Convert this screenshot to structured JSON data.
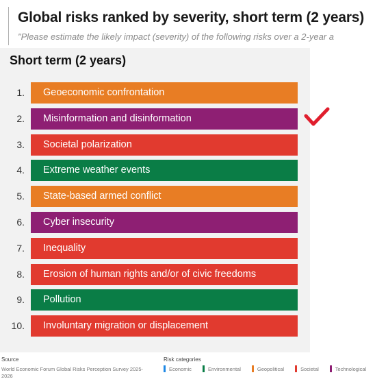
{
  "header": {
    "title": "Global risks ranked by severity, short term (2 years)",
    "subtitle": "\"Please estimate the likely impact (severity) of the following risks over a 2-year a"
  },
  "chart_data": {
    "type": "table",
    "title": "Short term (2 years)",
    "rows": [
      {
        "rank": "1.",
        "label": "Geoeconomic confrontation",
        "category": "Geopolitical"
      },
      {
        "rank": "2.",
        "label": "Misinformation and disinformation",
        "category": "Technological"
      },
      {
        "rank": "3.",
        "label": "Societal polarization",
        "category": "Societal"
      },
      {
        "rank": "4.",
        "label": "Extreme weather events",
        "category": "Environmental"
      },
      {
        "rank": "5.",
        "label": "State-based armed conflict",
        "category": "Geopolitical"
      },
      {
        "rank": "6.",
        "label": "Cyber insecurity",
        "category": "Technological"
      },
      {
        "rank": "7.",
        "label": "Inequality",
        "category": "Societal"
      },
      {
        "rank": "8.",
        "label": "Erosion of human rights and/or of civic freedoms",
        "category": "Societal"
      },
      {
        "rank": "9.",
        "label": "Pollution",
        "category": "Environmental"
      },
      {
        "rank": "10.",
        "label": "Involuntary migration or displacement",
        "category": "Societal"
      }
    ],
    "category_colors": {
      "Economic": "#1e88e5",
      "Environmental": "#0a7d46",
      "Geopolitical": "#e87d24",
      "Societal": "#e13a2f",
      "Technological": "#8e1f73"
    }
  },
  "annotation": {
    "icon": "checkmark-icon",
    "color": "#e01e2d"
  },
  "footer": {
    "source_heading": "Source",
    "source_text": "World Economic Forum Global Risks Perception Survey 2025-2026",
    "legend_title": "Risk categories",
    "legend": [
      "Economic",
      "Environmental",
      "Geopolitical",
      "Societal",
      "Technological"
    ]
  }
}
